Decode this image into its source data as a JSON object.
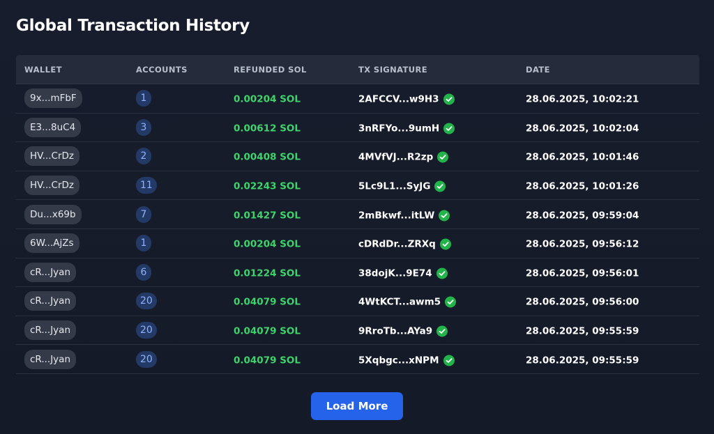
{
  "title": "Global Transaction History",
  "columns": {
    "wallet": "WALLET",
    "accounts": "ACCOUNTS",
    "refunded": "REFUNDED SOL",
    "signature": "TX SIGNATURE",
    "date": "DATE"
  },
  "rows": [
    {
      "wallet": "9x...mFbF",
      "accounts": "1",
      "refunded": "0.00204 SOL",
      "signature": "2AFCCV...w9H3",
      "date": "28.06.2025, 10:02:21"
    },
    {
      "wallet": "E3...8uC4",
      "accounts": "3",
      "refunded": "0.00612 SOL",
      "signature": "3nRFYo...9umH",
      "date": "28.06.2025, 10:02:04"
    },
    {
      "wallet": "HV...CrDz",
      "accounts": "2",
      "refunded": "0.00408 SOL",
      "signature": "4MVfVJ...R2zp",
      "date": "28.06.2025, 10:01:46"
    },
    {
      "wallet": "HV...CrDz",
      "accounts": "11",
      "refunded": "0.02243 SOL",
      "signature": "5Lc9L1...SyJG",
      "date": "28.06.2025, 10:01:26"
    },
    {
      "wallet": "Du...x69b",
      "accounts": "7",
      "refunded": "0.01427 SOL",
      "signature": "2mBkwf...itLW",
      "date": "28.06.2025, 09:59:04"
    },
    {
      "wallet": "6W...AjZs",
      "accounts": "1",
      "refunded": "0.00204 SOL",
      "signature": "cDRdDr...ZRXq",
      "date": "28.06.2025, 09:56:12"
    },
    {
      "wallet": "cR...Jyan",
      "accounts": "6",
      "refunded": "0.01224 SOL",
      "signature": "38dojK...9E74",
      "date": "28.06.2025, 09:56:01"
    },
    {
      "wallet": "cR...Jyan",
      "accounts": "20",
      "refunded": "0.04079 SOL",
      "signature": "4WtKCT...awm5",
      "date": "28.06.2025, 09:56:00"
    },
    {
      "wallet": "cR...Jyan",
      "accounts": "20",
      "refunded": "0.04079 SOL",
      "signature": "9RroTb...AYa9",
      "date": "28.06.2025, 09:55:59"
    },
    {
      "wallet": "cR...Jyan",
      "accounts": "20",
      "refunded": "0.04079 SOL",
      "signature": "5Xqbgc...xNPM",
      "date": "28.06.2025, 09:55:59"
    }
  ],
  "status_icon": "check-circle-icon",
  "load_more_label": "Load More",
  "colors": {
    "background": "#141a28",
    "header_bg": "#252b3a",
    "refund_green": "#3fd46b",
    "check_green": "#22b34a",
    "accent_blue": "#2563eb",
    "badge_blue": "#233a66"
  }
}
